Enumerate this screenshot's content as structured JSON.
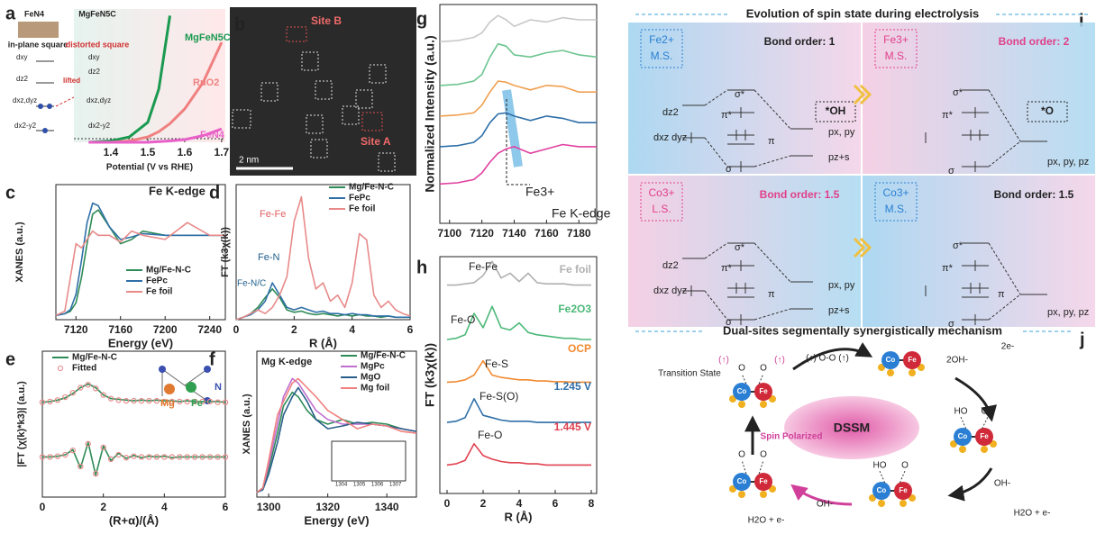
{
  "chart_data": [
    {
      "type": "line",
      "label": "a",
      "xlabel": "Potential (V vs RHE)",
      "xlim": [
        1.3,
        1.71
      ],
      "ylim": [
        0,
        100
      ],
      "xticks": [
        1.4,
        1.5,
        1.6,
        1.7
      ],
      "x": [
        1.34,
        1.4,
        1.45,
        1.5,
        1.53,
        1.56,
        1.6,
        1.65,
        1.7
      ],
      "series": [
        {
          "name": "MgFeN5C",
          "color": "#1a9a50",
          "values": [
            0,
            1,
            4,
            15,
            40,
            95,
            null,
            null,
            null
          ]
        },
        {
          "name": "RuO2",
          "color": "#f08080",
          "values": [
            0,
            0,
            1,
            4,
            8,
            14,
            25,
            45,
            75
          ]
        },
        {
          "name": "FeN4",
          "color": "#e860c8",
          "values": [
            0,
            0,
            0,
            0,
            0.5,
            1,
            2,
            5,
            10
          ]
        }
      ]
    },
    {
      "type": "line",
      "label": "c",
      "xlabel": "Energy (eV)",
      "ylabel": "XANES (a.u.)",
      "annotations": [
        "Fe K-edge"
      ],
      "xlim": [
        7102,
        7254
      ],
      "ylim": [
        0,
        1.6
      ],
      "xticks": [
        7120,
        7160,
        7200,
        7240
      ],
      "x": [
        7102,
        7110,
        7115,
        7120,
        7125,
        7130,
        7135,
        7140,
        7150,
        7160,
        7170,
        7180,
        7200,
        7220,
        7240,
        7254
      ],
      "series": [
        {
          "name": "Mg/Fe-N-C",
          "color": "#2e8b57",
          "values": [
            0.05,
            0.07,
            0.1,
            0.2,
            0.5,
            0.9,
            1.25,
            1.3,
            1.1,
            0.9,
            0.95,
            1.05,
            1.0,
            1.0,
            1.0,
            1.0
          ]
        },
        {
          "name": "FePc",
          "color": "#2f6fa8",
          "values": [
            0.05,
            0.07,
            0.12,
            0.3,
            0.7,
            1.15,
            1.38,
            1.35,
            1.1,
            0.95,
            0.98,
            1.02,
            1.0,
            1.0,
            1.0,
            1.0
          ]
        },
        {
          "name": "Fe foil",
          "color": "#e88a8a",
          "values": [
            0.05,
            0.1,
            0.5,
            0.9,
            0.85,
            0.95,
            1.05,
            1.0,
            1.0,
            0.92,
            1.05,
            1.0,
            0.95,
            1.15,
            1.0,
            1.0
          ]
        }
      ]
    },
    {
      "type": "line",
      "label": "d",
      "xlabel": "R (Å)",
      "ylabel": "FT (k3χ(k))",
      "annotations": [
        "Fe-Fe",
        "Fe-N",
        "Fe-N/C"
      ],
      "xlim": [
        0,
        6
      ],
      "ylim": [
        0,
        1.1
      ],
      "xticks": [
        0,
        2,
        4,
        6
      ],
      "x": [
        0,
        0.25,
        0.5,
        0.75,
        1,
        1.25,
        1.5,
        1.75,
        2,
        2.25,
        2.5,
        2.75,
        3,
        3.25,
        3.5,
        3.75,
        4,
        4.25,
        4.5,
        4.75,
        5,
        5.25,
        5.5,
        5.75,
        6
      ],
      "series": [
        {
          "name": "Mg/Fe-N-C",
          "color": "#2e8b57",
          "values": [
            0,
            0.02,
            0.05,
            0.1,
            0.18,
            0.25,
            0.18,
            0.08,
            0.06,
            0.07,
            0.05,
            0.04,
            0.05,
            0.04,
            0.03,
            0.04,
            0.03,
            0.04,
            0.03,
            0.03,
            0.02,
            0.03,
            0.02,
            0.02,
            0.02
          ]
        },
        {
          "name": "FePc",
          "color": "#2f6fa8",
          "values": [
            0,
            0.02,
            0.04,
            0.08,
            0.15,
            0.3,
            0.2,
            0.1,
            0.08,
            0.1,
            0.08,
            0.06,
            0.07,
            0.05,
            0.05,
            0.04,
            0.05,
            0.04,
            0.04,
            0.03,
            0.03,
            0.03,
            0.02,
            0.02,
            0.02
          ]
        },
        {
          "name": "Fe foil",
          "color": "#e88a8a",
          "values": [
            0,
            0.02,
            0.05,
            0.08,
            0.05,
            0.1,
            0.2,
            0.35,
            0.8,
            1.0,
            0.5,
            0.25,
            0.3,
            0.15,
            0.2,
            0.1,
            0.3,
            0.7,
            0.65,
            0.2,
            0.1,
            0.15,
            0.08,
            0.05,
            0.03
          ]
        }
      ]
    },
    {
      "type": "line",
      "label": "e",
      "xlabel": "(R+α)/(Å)",
      "ylabel": "|FT (χ(k)*k3)| (a.u.)",
      "annotations": [
        "Mg",
        "Fe",
        "N"
      ],
      "xlim": [
        0,
        6
      ],
      "ylim": [
        -1,
        1
      ],
      "xticks": [
        0,
        2,
        4,
        6
      ],
      "x": [
        0,
        0.25,
        0.5,
        0.75,
        1,
        1.25,
        1.5,
        1.75,
        2,
        2.25,
        2.5,
        2.75,
        3,
        3.25,
        3.5,
        3.75,
        4,
        4.25,
        4.5,
        4.75,
        5,
        5.25,
        5.5,
        5.75,
        6
      ],
      "series": [
        {
          "name": "Mg/Fe-N-C",
          "color": "#2e8b57",
          "values": [
            0.3,
            0.31,
            0.33,
            0.36,
            0.42,
            0.5,
            0.55,
            0.5,
            0.4,
            0.35,
            0.34,
            0.33,
            0.32,
            0.33,
            0.32,
            0.33,
            0.32,
            0.32,
            0.31,
            0.32,
            0.31,
            0.31,
            0.31,
            0.31,
            0.3
          ]
        },
        {
          "name": "Fitted",
          "color": "#e88a8a",
          "marker": "circle",
          "values": [
            0.3,
            0.31,
            0.33,
            0.37,
            0.43,
            0.5,
            0.54,
            0.49,
            0.4,
            0.35,
            0.33,
            0.32,
            0.32,
            0.32,
            0.32,
            0.32,
            0.31,
            0.31,
            0.31,
            0.31,
            0.31,
            0.31,
            0.31,
            0.3,
            0.3
          ]
        },
        {
          "color": "#2e8b57",
          "values": [
            -0.45,
            -0.45,
            -0.44,
            -0.42,
            -0.35,
            -0.6,
            -0.25,
            -0.7,
            -0.3,
            -0.5,
            -0.4,
            -0.47,
            -0.43,
            -0.46,
            -0.44,
            -0.45,
            -0.44,
            -0.46,
            -0.45,
            -0.45,
            -0.45,
            -0.45,
            -0.45,
            -0.45,
            -0.45
          ]
        },
        {
          "color": "#e88a8a",
          "marker": "circle",
          "values": [
            -0.45,
            -0.45,
            -0.44,
            -0.42,
            -0.36,
            -0.58,
            -0.27,
            -0.68,
            -0.32,
            -0.48,
            -0.42,
            -0.46,
            -0.44,
            -0.45,
            -0.45,
            -0.45,
            -0.45,
            -0.45,
            -0.45,
            -0.45,
            -0.45,
            -0.45,
            -0.45,
            -0.45,
            -0.45
          ]
        }
      ]
    },
    {
      "type": "line",
      "label": "f",
      "xlabel": "Energy (eV)",
      "ylabel": "XANES (a.u.)",
      "annotations": [
        "Mg K-edge",
        "1304",
        "1305",
        "1306",
        "1307"
      ],
      "xlim": [
        1296,
        1350
      ],
      "ylim": [
        0,
        1.6
      ],
      "xticks": [
        1300,
        1320,
        1340
      ],
      "x": [
        1296,
        1298,
        1300,
        1303,
        1305,
        1308,
        1310,
        1313,
        1316,
        1320,
        1325,
        1330,
        1335,
        1340,
        1345,
        1350
      ],
      "series": [
        {
          "name": "Mg/Fe-N-C",
          "color": "#2e8b57",
          "values": [
            0.05,
            0.1,
            0.3,
            0.7,
            1.0,
            1.15,
            1.1,
            0.95,
            0.85,
            0.8,
            0.85,
            0.8,
            0.82,
            0.8,
            0.75,
            0.72
          ]
        },
        {
          "name": "MgPc",
          "color": "#c070d0",
          "values": [
            0.05,
            0.1,
            0.35,
            0.8,
            1.1,
            1.3,
            1.25,
            1.1,
            0.95,
            0.85,
            0.8,
            0.8,
            0.8,
            0.78,
            0.75,
            0.72
          ]
        },
        {
          "name": "MgO",
          "color": "#2a5f8a",
          "values": [
            0.05,
            0.08,
            0.25,
            0.6,
            0.9,
            1.1,
            1.2,
            1.05,
            0.85,
            0.75,
            0.78,
            0.82,
            0.8,
            0.78,
            0.75,
            0.72
          ]
        },
        {
          "name": "Mg foil",
          "color": "#f08080",
          "values": [
            0.05,
            0.1,
            0.4,
            0.9,
            1.05,
            1.25,
            1.3,
            1.2,
            1.1,
            0.95,
            0.85,
            0.75,
            0.8,
            0.78,
            0.72,
            0.7
          ]
        }
      ]
    },
    {
      "type": "line",
      "label": "g",
      "ylabel": "Normalized Intensity (a.u.)",
      "annotations": [
        "Fe K-edge",
        "Fe3+"
      ],
      "xlim": [
        7094,
        7191
      ],
      "ylim": [
        0,
        10
      ],
      "xticks": [
        7100,
        7120,
        7140,
        7160,
        7180
      ],
      "x": [
        7094,
        7105,
        7115,
        7120,
        7125,
        7130,
        7135,
        7140,
        7150,
        7160,
        7170,
        7180,
        7191
      ],
      "series": [
        {
          "color": "#c8c8c8",
          "values": [
            8.3,
            8.35,
            8.5,
            8.7,
            9.2,
            9.5,
            9.3,
            9.0,
            9.3,
            9.2,
            9.4,
            9.3,
            9.3
          ]
        },
        {
          "color": "#6cc490",
          "values": [
            6.3,
            6.35,
            6.5,
            6.8,
            7.6,
            8.2,
            8.1,
            7.7,
            7.6,
            7.8,
            7.9,
            7.7,
            7.6
          ]
        },
        {
          "color": "#f0a050",
          "values": [
            4.9,
            4.95,
            5.05,
            5.4,
            6.0,
            6.5,
            6.45,
            6.3,
            6.1,
            6.3,
            6.25,
            6.0,
            6.0
          ]
        },
        {
          "color": "#2f6fa8",
          "values": [
            3.5,
            3.55,
            3.7,
            4.0,
            4.6,
            5.0,
            5.05,
            4.9,
            4.7,
            4.9,
            4.8,
            4.6,
            4.6
          ]
        },
        {
          "color": "#e040a0",
          "values": [
            1.8,
            1.85,
            2.0,
            2.3,
            2.8,
            3.2,
            3.4,
            3.5,
            3.2,
            3.4,
            3.6,
            3.5,
            3.5
          ]
        }
      ]
    },
    {
      "type": "line",
      "label": "h",
      "xlabel": "R (Å)",
      "ylabel": "FT (k3χ(k))",
      "annotations": [
        "Fe-Fe",
        "Fe-O",
        "Fe-S",
        "Fe-S(O)",
        "Fe-O"
      ],
      "xlim": [
        -0.4,
        8.3
      ],
      "ylim": [
        0,
        10
      ],
      "xticks": [
        0,
        2,
        4,
        6,
        8
      ],
      "x": [
        0,
        0.5,
        1,
        1.5,
        2,
        2.5,
        3,
        3.5,
        4,
        4.5,
        5,
        5.5,
        6,
        6.5,
        7,
        7.5,
        8
      ],
      "series": [
        {
          "name": "Fe foil",
          "color": "#b0b0b0",
          "values": [
            8.8,
            8.8,
            8.85,
            8.9,
            9.2,
            9.8,
            9.1,
            9.3,
            8.95,
            9.3,
            8.9,
            8.85,
            8.85,
            8.85,
            8.8,
            8.8,
            8.8
          ]
        },
        {
          "name": "Fe2O3",
          "color": "#4cb878",
          "values": [
            6.5,
            6.55,
            6.7,
            7.6,
            7.0,
            7.9,
            7.0,
            6.9,
            7.2,
            6.8,
            6.7,
            6.65,
            6.6,
            6.55,
            6.55,
            6.5,
            6.5
          ]
        },
        {
          "name": "OCP",
          "color": "#f08a30",
          "values": [
            4.7,
            4.72,
            4.8,
            5.0,
            5.6,
            5.0,
            4.9,
            4.85,
            4.8,
            4.8,
            4.75,
            4.75,
            4.72,
            4.72,
            4.7,
            4.7,
            4.7
          ]
        },
        {
          "name": "1.245 V",
          "color": "#2f6fa8",
          "values": [
            3.0,
            3.05,
            3.2,
            4.0,
            3.3,
            3.2,
            3.1,
            3.05,
            3.05,
            3.05,
            3.0,
            3.0,
            3.0,
            3.0,
            3.0,
            3.0,
            3.0
          ]
        },
        {
          "name": "1.445 V",
          "color": "#e04050",
          "values": [
            1.2,
            1.25,
            1.4,
            2.1,
            1.6,
            1.45,
            1.35,
            1.3,
            1.3,
            1.25,
            1.25,
            1.2,
            1.2,
            1.2,
            1.2,
            1.2,
            1.2
          ]
        }
      ]
    }
  ],
  "a_inset": {
    "labels": [
      "FeN4",
      "MgFeN5C"
    ],
    "geometry": [
      "in-plane square",
      "distorted square"
    ],
    "lifted": "lifted",
    "orbitals": [
      "dxy",
      "dz2",
      "dxz,dyz",
      "dx2-y2"
    ]
  },
  "panel_b": {
    "label": "b",
    "site_b": "Site B",
    "site_a": "Site A",
    "scale": "2 nm"
  },
  "spin_panel": {
    "label": "i",
    "title": "Evolution of spin state during electrolysis",
    "states": [
      {
        "ion": "Fe2+",
        "spin": "M.S.",
        "bond_order": "Bond order: 1",
        "adsorbate": "*OH",
        "orbitals": [
          "σ*",
          "π*",
          "π",
          "σ",
          "dz2",
          "dxz dyz",
          "px, py",
          "pz+s"
        ]
      },
      {
        "ion": "Fe3+",
        "spin": "M.S.",
        "bond_order": "Bond order: 2",
        "adsorbate": "*O",
        "orbitals": [
          "σ*",
          "π*",
          "σ",
          "px, py, pz"
        ]
      },
      {
        "ion": "Co3+",
        "spin": "L.S.",
        "bond_order": "Bond order: 1.5",
        "orbitals": [
          "σ*",
          "π*",
          "π",
          "σ",
          "dz2",
          "dxz dyz",
          "px, py",
          "pz+s"
        ]
      },
      {
        "ion": "Co3+",
        "spin": "M.S.",
        "bond_order": "Bond order: 1.5",
        "orbitals": [
          "σ*",
          "π*",
          "π",
          "σ",
          "px, py, pz"
        ]
      }
    ]
  },
  "mechanism": {
    "label": "j",
    "title": "Dual-sites segmentally synergistically mechanism",
    "center": "DSSM",
    "transition_state": "Transition State",
    "spin_up": "(↑)",
    "oo": "(↑) O-O (↑)",
    "oh2": "2OH-",
    "e2": "2e-",
    "ho": "HO",
    "oh": "OH",
    "oh_minus": "OH-",
    "water": "H2O + e-",
    "spin_polarized": "Spin Polarized",
    "co": "Co",
    "fe": "Fe",
    "o": "O"
  }
}
